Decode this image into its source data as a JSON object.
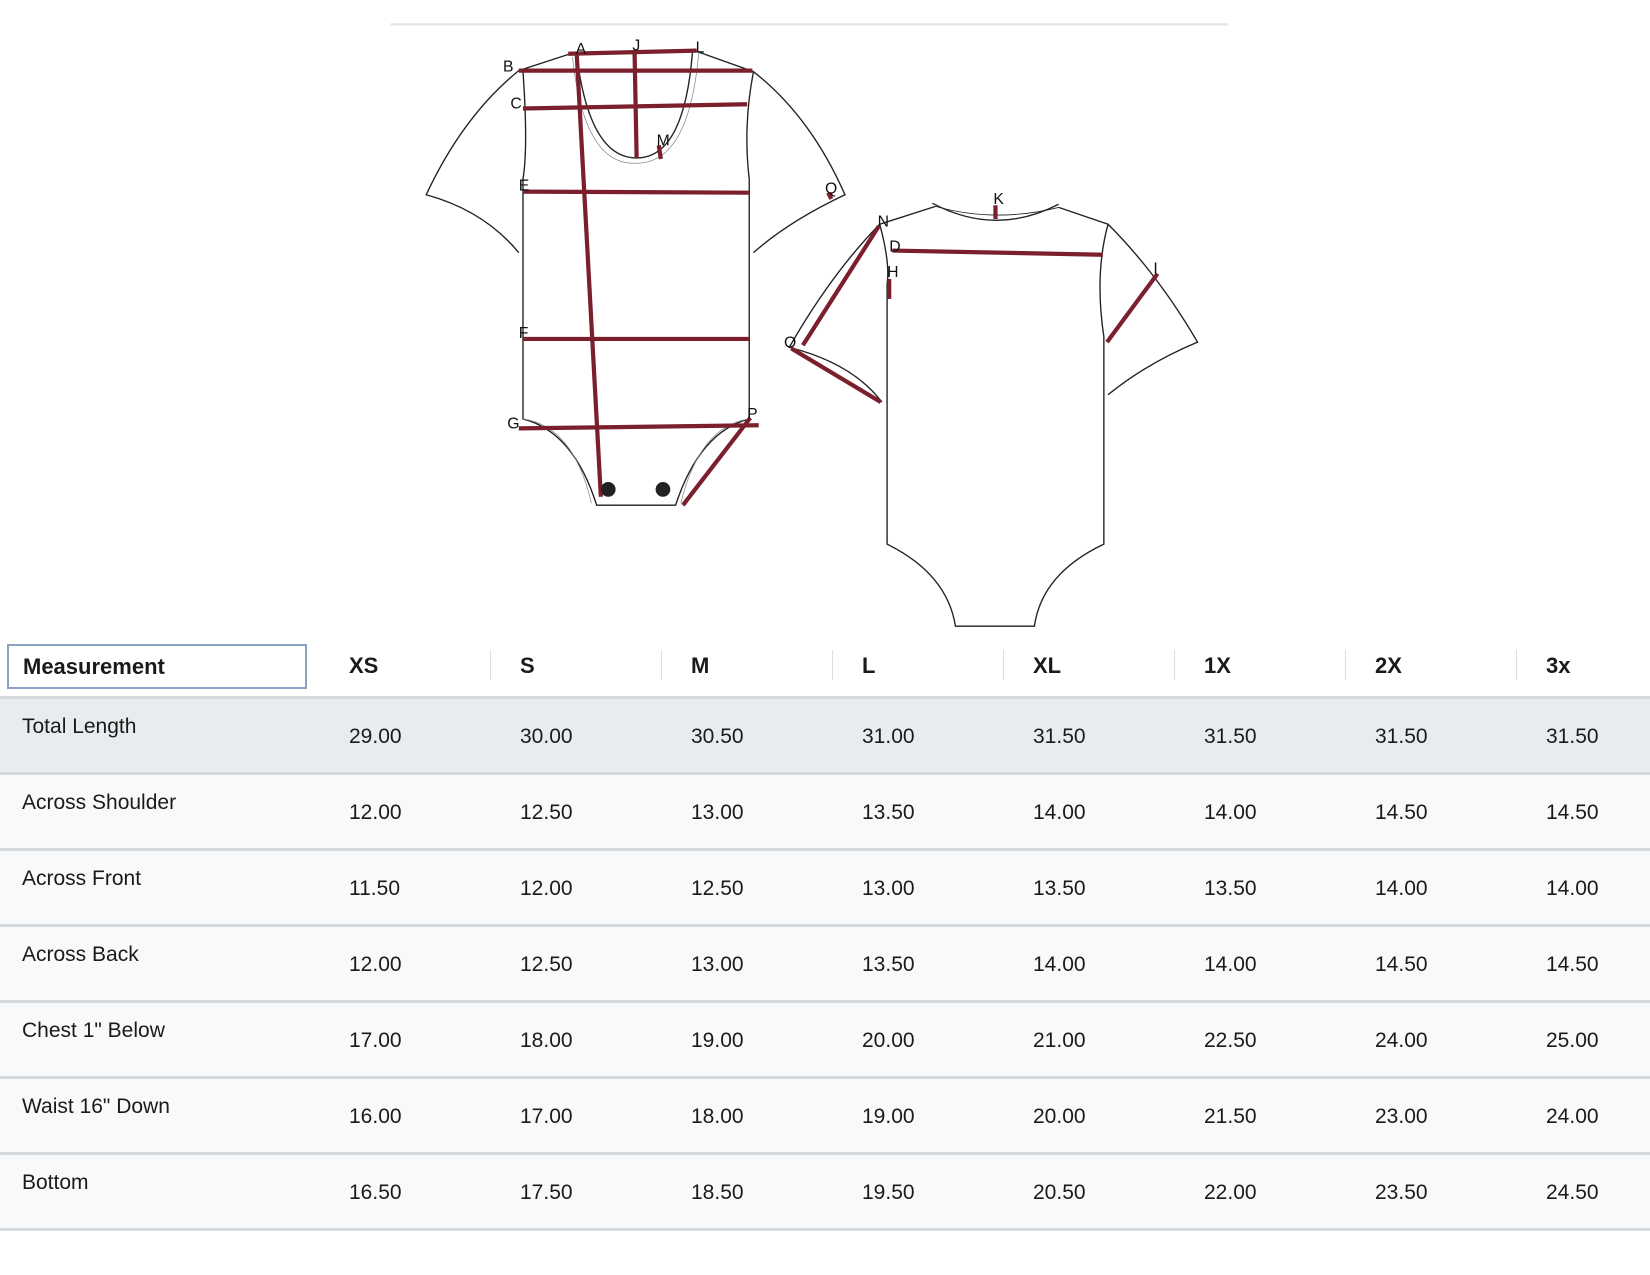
{
  "diagram": {
    "labels": {
      "A": "A",
      "J": "J",
      "L": "L",
      "B": "B",
      "C": "C",
      "M": "M",
      "E": "E",
      "F": "F",
      "G": "G",
      "P": "P",
      "Q": "Q",
      "K": "K",
      "N": "N",
      "D": "D",
      "H": "H",
      "O": "O",
      "I": "I"
    },
    "colors": {
      "measure_line": "#7a1f2b",
      "outline": "#222222"
    }
  },
  "table": {
    "headers": [
      "Measurement",
      "XS",
      "S",
      "M",
      "L",
      "XL",
      "1X",
      "2X",
      "3x"
    ],
    "rows": [
      {
        "label": "Total Length",
        "values": [
          "29.00",
          "30.00",
          "30.50",
          "31.00",
          "31.50",
          "31.50",
          "31.50",
          "31.50"
        ]
      },
      {
        "label": "Across Shoulder",
        "values": [
          "12.00",
          "12.50",
          "13.00",
          "13.50",
          "14.00",
          "14.00",
          "14.50",
          "14.50"
        ]
      },
      {
        "label": "Across Front",
        "values": [
          "11.50",
          "12.00",
          "12.50",
          "13.00",
          "13.50",
          "13.50",
          "14.00",
          "14.00"
        ]
      },
      {
        "label": "Across Back",
        "values": [
          "12.00",
          "12.50",
          "13.00",
          "13.50",
          "14.00",
          "14.00",
          "14.50",
          "14.50"
        ]
      },
      {
        "label": "Chest 1\" Below",
        "values": [
          "17.00",
          "18.00",
          "19.00",
          "20.00",
          "21.00",
          "22.50",
          "24.00",
          "25.00"
        ]
      },
      {
        "label": "Waist 16\" Down",
        "values": [
          "16.00",
          "17.00",
          "18.00",
          "19.00",
          "20.00",
          "21.50",
          "23.00",
          "24.00"
        ]
      },
      {
        "label": "Bottom",
        "values": [
          "16.50",
          "17.50",
          "18.50",
          "19.50",
          "20.50",
          "22.00",
          "23.50",
          "24.50"
        ]
      }
    ]
  }
}
